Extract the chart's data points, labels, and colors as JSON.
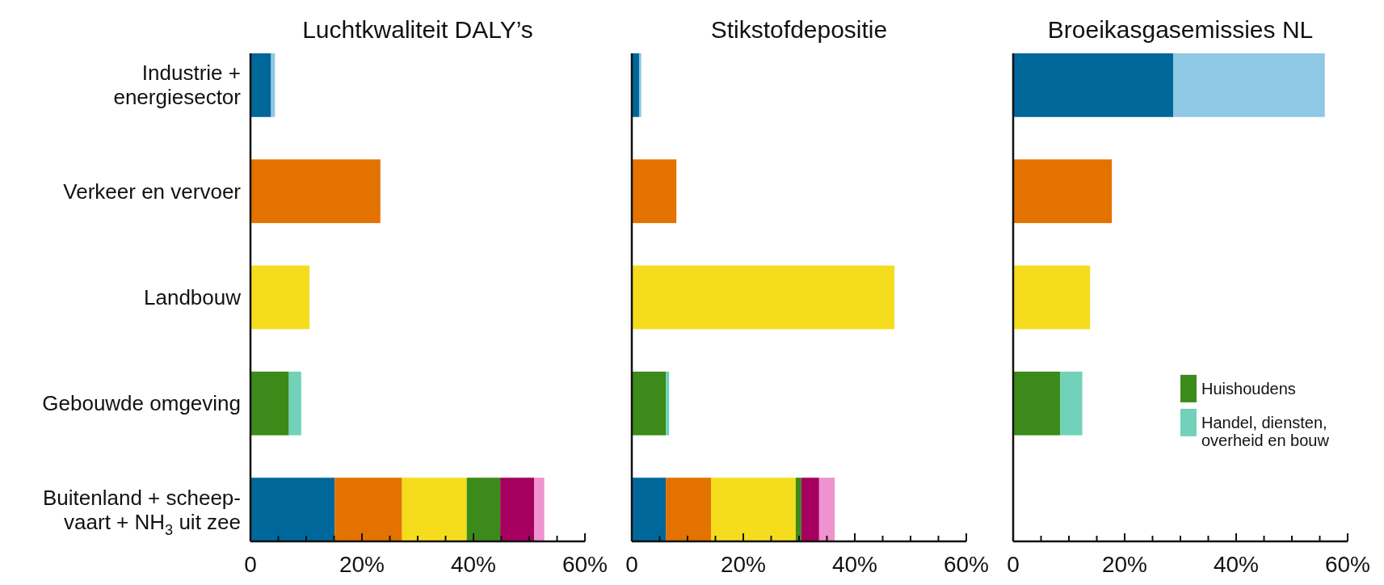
{
  "chart_data": [
    {
      "type": "bar",
      "orientation": "horizontal",
      "stacked": true,
      "title": "Luchtkwaliteit DALY’s",
      "categories": [
        "Industrie +\nenergiesector",
        "Verkeer en vervoer",
        "Landbouw",
        "Gebouwde omgeving",
        "Buitenland + scheep-\nvaart + NH$_{3}$ uit zee"
      ],
      "series": [
        {
          "color": "#00679b",
          "values": [
            3.7,
            null,
            null,
            null,
            15.1
          ]
        },
        {
          "color": "#8fc8e4",
          "values": [
            0.7,
            null,
            null,
            null,
            null
          ]
        },
        {
          "color": "#e37200",
          "values": [
            null,
            23.3,
            null,
            null,
            12.1
          ]
        },
        {
          "color": "#f5dd1e",
          "values": [
            null,
            null,
            10.6,
            null,
            11.6
          ]
        },
        {
          "color": "#3b8a1a",
          "values": [
            null,
            null,
            null,
            6.9,
            6.0
          ]
        },
        {
          "color": "#71d2b9",
          "values": [
            null,
            null,
            null,
            2.2,
            null
          ]
        },
        {
          "color": "#a5005f",
          "values": [
            null,
            null,
            null,
            null,
            6.1
          ]
        },
        {
          "color": "#ef92cf",
          "values": [
            null,
            null,
            null,
            null,
            1.8
          ]
        }
      ],
      "xlim": [
        0,
        60
      ],
      "xticks": [
        {
          "value": 0,
          "label": "0"
        },
        {
          "value": 5,
          "label": null
        },
        {
          "value": 10,
          "label": null
        },
        {
          "value": 15,
          "label": null
        },
        {
          "value": 20,
          "label": "20%"
        },
        {
          "value": 25,
          "label": null
        },
        {
          "value": 30,
          "label": null
        },
        {
          "value": 35,
          "label": null
        },
        {
          "value": 40,
          "label": "40%"
        },
        {
          "value": 45,
          "label": null
        },
        {
          "value": 50,
          "label": null
        },
        {
          "value": 55,
          "label": null
        },
        {
          "value": 60,
          "label": "60%"
        }
      ]
    },
    {
      "type": "bar",
      "orientation": "horizontal",
      "stacked": true,
      "title": "Stikstofdepositie",
      "categories": [
        null,
        null,
        null,
        null,
        null
      ],
      "series": [
        {
          "color": "#00679b",
          "values": [
            1.3,
            null,
            null,
            null,
            6.1
          ]
        },
        {
          "color": "#8fc8e4",
          "values": [
            0.4,
            null,
            null,
            null,
            null
          ]
        },
        {
          "color": "#e37200",
          "values": [
            null,
            8.0,
            null,
            null,
            8.1
          ]
        },
        {
          "color": "#f5dd1e",
          "values": [
            null,
            null,
            47.1,
            null,
            15.2
          ]
        },
        {
          "color": "#3b8a1a",
          "values": [
            null,
            null,
            null,
            6.1,
            1.0
          ]
        },
        {
          "color": "#71d2b9",
          "values": [
            null,
            null,
            null,
            0.6,
            null
          ]
        },
        {
          "color": "#a5005f",
          "values": [
            null,
            null,
            null,
            null,
            3.2
          ]
        },
        {
          "color": "#ef92cf",
          "values": [
            null,
            null,
            null,
            null,
            2.8
          ]
        }
      ],
      "xlim": [
        0,
        60
      ],
      "xticks": [
        {
          "value": 0,
          "label": "0"
        },
        {
          "value": 5,
          "label": null
        },
        {
          "value": 10,
          "label": null
        },
        {
          "value": 15,
          "label": null
        },
        {
          "value": 20,
          "label": "20%"
        },
        {
          "value": 25,
          "label": null
        },
        {
          "value": 30,
          "label": null
        },
        {
          "value": 35,
          "label": null
        },
        {
          "value": 40,
          "label": "40%"
        },
        {
          "value": 45,
          "label": null
        },
        {
          "value": 50,
          "label": null
        },
        {
          "value": 55,
          "label": null
        },
        {
          "value": 60,
          "label": "60%"
        }
      ],
      "tick_labels": "x"
    },
    {
      "type": "bar",
      "orientation": "horizontal",
      "stacked": true,
      "title": "Broeikasgasemissies NL",
      "categories": [
        null,
        null,
        null,
        null,
        null
      ],
      "series": [
        {
          "color": "#00679b",
          "values": [
            28.7,
            null,
            null,
            null,
            null
          ]
        },
        {
          "color": "#8fc8e4",
          "values": [
            27.2,
            null,
            null,
            null,
            null
          ]
        },
        {
          "color": "#e37200",
          "values": [
            null,
            17.7,
            null,
            null,
            null
          ]
        },
        {
          "color": "#f5dd1e",
          "values": [
            null,
            null,
            13.8,
            null,
            null
          ]
        },
        {
          "name": "Huishoudens",
          "color": "#3b8a1a",
          "values": [
            null,
            null,
            null,
            8.4,
            null
          ]
        },
        {
          "name": "Handel, diensten,\noverheid en bouw",
          "color": "#71d2b9",
          "values": [
            null,
            null,
            null,
            4.0,
            null
          ]
        }
      ],
      "xlim": [
        0,
        60
      ],
      "xticks": [
        {
          "value": 0,
          "label": "0"
        },
        {
          "value": 5,
          "label": null
        },
        {
          "value": 10,
          "label": null
        },
        {
          "value": 15,
          "label": null
        },
        {
          "value": 20,
          "label": "20%"
        },
        {
          "value": 25,
          "label": null
        },
        {
          "value": 30,
          "label": null
        },
        {
          "value": 35,
          "label": null
        },
        {
          "value": 40,
          "label": "40%"
        },
        {
          "value": 45,
          "label": null
        },
        {
          "value": 50,
          "label": null
        },
        {
          "value": 55,
          "label": null
        },
        {
          "value": 60,
          "label": "60%"
        }
      ],
      "tick_labels": "x",
      "legend": "right"
    }
  ]
}
